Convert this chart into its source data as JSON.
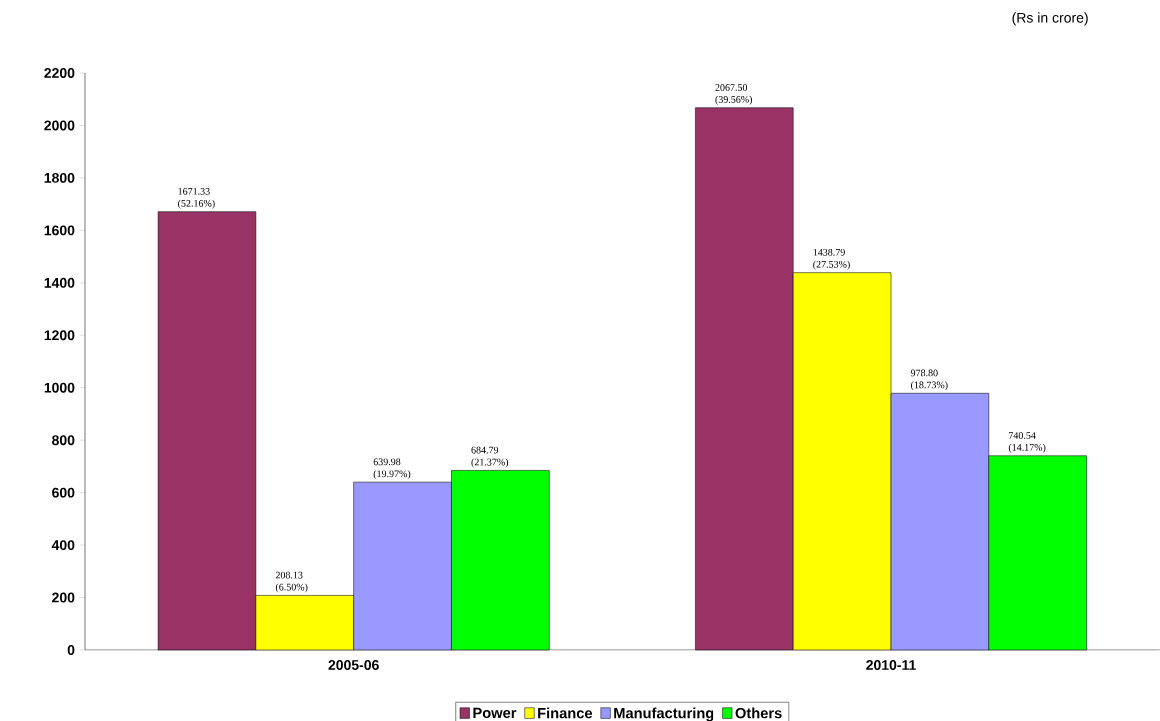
{
  "chart_data": {
    "type": "bar",
    "annotations": [
      "(Rs in crore)"
    ],
    "categories": [
      "2005-06",
      "2010-11"
    ],
    "series": [
      {
        "name": "Power",
        "color": "#993366",
        "values": [
          1671.33,
          2067.5
        ],
        "value_labels": [
          "1671.33 (52.16%)",
          "2067.50 (39.56%)"
        ]
      },
      {
        "name": "Finance",
        "color": "#ffff00",
        "values": [
          208.13,
          1438.79
        ],
        "value_labels": [
          "208.13 (6.50%)",
          "1438.79 (27.53%)"
        ]
      },
      {
        "name": "Manufacturing",
        "color": "#9999ff",
        "values": [
          639.98,
          978.8
        ],
        "value_labels": [
          "639.98 (19.97%)",
          "978.80 (18.73%)"
        ]
      },
      {
        "name": "Others",
        "color": "#00ff00",
        "values": [
          684.79,
          740.54
        ],
        "value_labels": [
          "684.79 (21.37%)",
          "740.54 (14.17%)"
        ]
      }
    ],
    "ylim": [
      0,
      2200
    ],
    "yticks": [
      0,
      200,
      400,
      600,
      800,
      1000,
      1200,
      1400,
      1600,
      1800,
      2000,
      2200
    ],
    "legend": "bottom"
  }
}
